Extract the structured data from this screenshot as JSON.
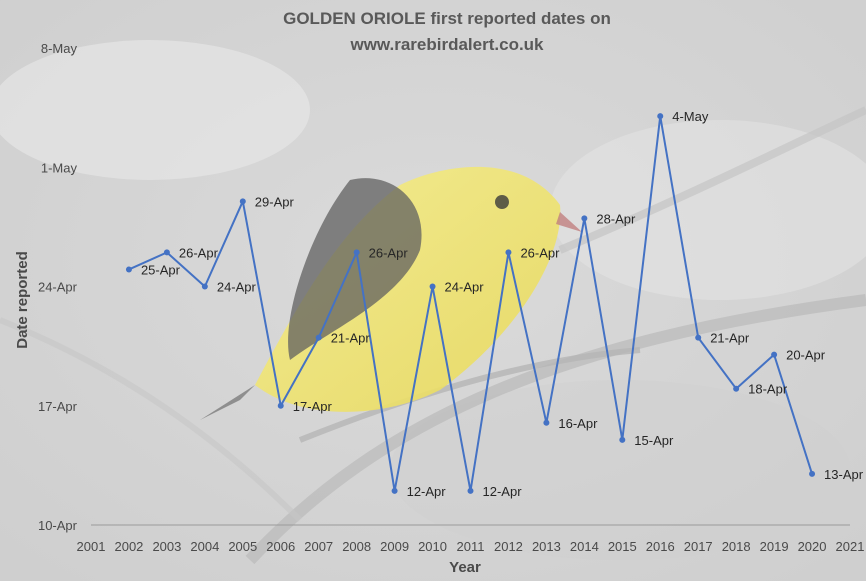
{
  "chart_data": {
    "type": "line",
    "title_lines": [
      "GOLDEN ORIOLE first reported dates on",
      "www.rarebirdalert.co.uk"
    ],
    "xlabel": "Year",
    "ylabel": "Date reported",
    "x_ticks": [
      "2001",
      "2002",
      "2003",
      "2004",
      "2005",
      "2006",
      "2007",
      "2008",
      "2009",
      "2010",
      "2011",
      "2012",
      "2013",
      "2014",
      "2015",
      "2016",
      "2017",
      "2018",
      "2019",
      "2020",
      "2021"
    ],
    "y_ticks": [
      "10-Apr",
      "17-Apr",
      "24-Apr",
      "1-May",
      "8-May"
    ],
    "xlim": [
      2001,
      2021
    ],
    "ylim": [
      "10-Apr",
      "8-May"
    ],
    "grid": false,
    "legend": "none",
    "series": [
      {
        "color": "#4472c4",
        "points": [
          {
            "x": 2002,
            "y": "25-Apr"
          },
          {
            "x": 2003,
            "y": "26-Apr"
          },
          {
            "x": 2004,
            "y": "24-Apr"
          },
          {
            "x": 2005,
            "y": "29-Apr"
          },
          {
            "x": 2006,
            "y": "17-Apr"
          },
          {
            "x": 2007,
            "y": "21-Apr"
          },
          {
            "x": 2008,
            "y": "26-Apr"
          },
          {
            "x": 2009,
            "y": "12-Apr"
          },
          {
            "x": 2010,
            "y": "24-Apr"
          },
          {
            "x": 2011,
            "y": "12-Apr"
          },
          {
            "x": 2012,
            "y": "26-Apr"
          },
          {
            "x": 2013,
            "y": "16-Apr"
          },
          {
            "x": 2014,
            "y": "28-Apr"
          },
          {
            "x": 2015,
            "y": "15-Apr"
          },
          {
            "x": 2016,
            "y": "4-May"
          },
          {
            "x": 2017,
            "y": "21-Apr"
          },
          {
            "x": 2018,
            "y": "18-Apr"
          },
          {
            "x": 2019,
            "y": "20-Apr"
          },
          {
            "x": 2020,
            "y": "13-Apr"
          }
        ]
      }
    ]
  },
  "background": {
    "image_subject": "golden-oriole-photo"
  }
}
